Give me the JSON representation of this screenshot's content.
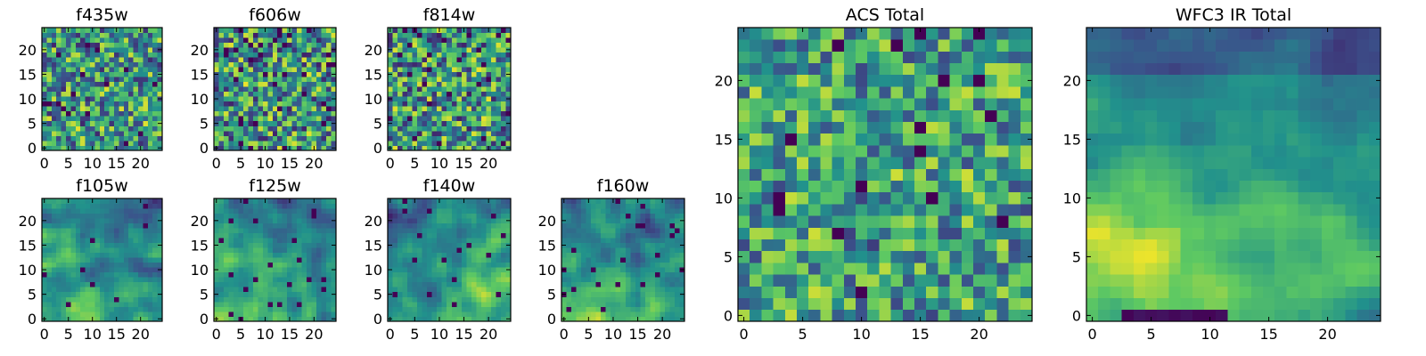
{
  "figure": {
    "colormap": "viridis",
    "colormap_stops": [
      "#440154",
      "#3b528b",
      "#21918c",
      "#5ec962",
      "#fde725"
    ]
  },
  "chart_data": [
    {
      "id": "f435w",
      "type": "heatmap",
      "title": "f435w",
      "size": 25,
      "seed": 11,
      "smooth": 0,
      "bias": 0.2,
      "lowfrac": 0.03,
      "xlim": [
        -0.5,
        24.5
      ],
      "ylim": [
        -0.5,
        24.5
      ],
      "xticks": [
        0,
        5,
        10,
        15,
        20
      ],
      "yticks": [
        0,
        5,
        10,
        15,
        20
      ]
    },
    {
      "id": "f606w",
      "type": "heatmap",
      "title": "f606w",
      "size": 25,
      "seed": 23,
      "smooth": 0,
      "bias": 0.15,
      "lowfrac": 0.04,
      "xlim": [
        -0.5,
        24.5
      ],
      "ylim": [
        -0.5,
        24.5
      ],
      "xticks": [
        0,
        5,
        10,
        15,
        20
      ],
      "yticks": [
        0,
        5,
        10,
        15,
        20
      ]
    },
    {
      "id": "f814w",
      "type": "heatmap",
      "title": "f814w",
      "size": 25,
      "seed": 37,
      "smooth": 0,
      "bias": 0.15,
      "lowfrac": 0.04,
      "xlim": [
        -0.5,
        24.5
      ],
      "ylim": [
        -0.5,
        24.5
      ],
      "xticks": [
        0,
        5,
        10,
        15,
        20
      ],
      "yticks": [
        0,
        5,
        10,
        15,
        20
      ]
    },
    {
      "id": "f105w",
      "type": "heatmap",
      "title": "f105w",
      "size": 25,
      "seed": 51,
      "smooth": 2,
      "bias": 0.1,
      "lowfrac": 0.02,
      "trend": "lower-left-bright",
      "xlim": [
        -0.5,
        24.5
      ],
      "ylim": [
        -0.5,
        24.5
      ],
      "xticks": [
        0,
        5,
        10,
        15,
        20
      ],
      "yticks": [
        0,
        5,
        10,
        15,
        20
      ]
    },
    {
      "id": "f125w",
      "type": "heatmap",
      "title": "f125w",
      "size": 25,
      "seed": 67,
      "smooth": 2,
      "bias": 0.12,
      "lowfrac": 0.02,
      "trend": "lower-left-bright",
      "xlim": [
        -0.5,
        24.5
      ],
      "ylim": [
        -0.5,
        24.5
      ],
      "xticks": [
        0,
        5,
        10,
        15,
        20
      ],
      "yticks": [
        0,
        5,
        10,
        15,
        20
      ]
    },
    {
      "id": "f140w",
      "type": "heatmap",
      "title": "f140w",
      "size": 25,
      "seed": 79,
      "smooth": 2,
      "bias": 0.1,
      "lowfrac": 0.03,
      "trend": "bottom-right-bright",
      "xlim": [
        -0.5,
        24.5
      ],
      "ylim": [
        -0.5,
        24.5
      ],
      "xticks": [
        0,
        5,
        10,
        15,
        20
      ],
      "yticks": [
        0,
        5,
        10,
        15,
        20
      ]
    },
    {
      "id": "f160w",
      "type": "heatmap",
      "title": "f160w",
      "size": 25,
      "seed": 93,
      "smooth": 2,
      "bias": 0.1,
      "lowfrac": 0.03,
      "trend": "lower-left-bright",
      "xlim": [
        -0.5,
        24.5
      ],
      "ylim": [
        -0.5,
        24.5
      ],
      "xticks": [
        0,
        5,
        10,
        15,
        20
      ],
      "yticks": [
        0,
        5,
        10,
        15,
        20
      ]
    },
    {
      "id": "acs-total",
      "type": "heatmap",
      "title": "ACS Total",
      "size": 25,
      "seed": 107,
      "smooth": 0,
      "bias": 0.3,
      "lowfrac": 0.025,
      "xlim": [
        -0.5,
        24.5
      ],
      "ylim": [
        -0.5,
        24.5
      ],
      "xticks": [
        0,
        5,
        10,
        15,
        20
      ],
      "yticks": [
        0,
        5,
        10,
        15,
        20
      ]
    },
    {
      "id": "wfc3-ir-total",
      "type": "heatmap",
      "title": "WFC3 IR Total",
      "size": 25,
      "seed": 131,
      "smooth": 2,
      "bias": 0.05,
      "lowfrac": 0.0,
      "trend": "wfc3",
      "xlim": [
        -0.5,
        24.5
      ],
      "ylim": [
        -0.5,
        24.5
      ],
      "xticks": [
        0,
        5,
        10,
        15,
        20
      ],
      "yticks": [
        0,
        5,
        10,
        15,
        20
      ]
    }
  ]
}
